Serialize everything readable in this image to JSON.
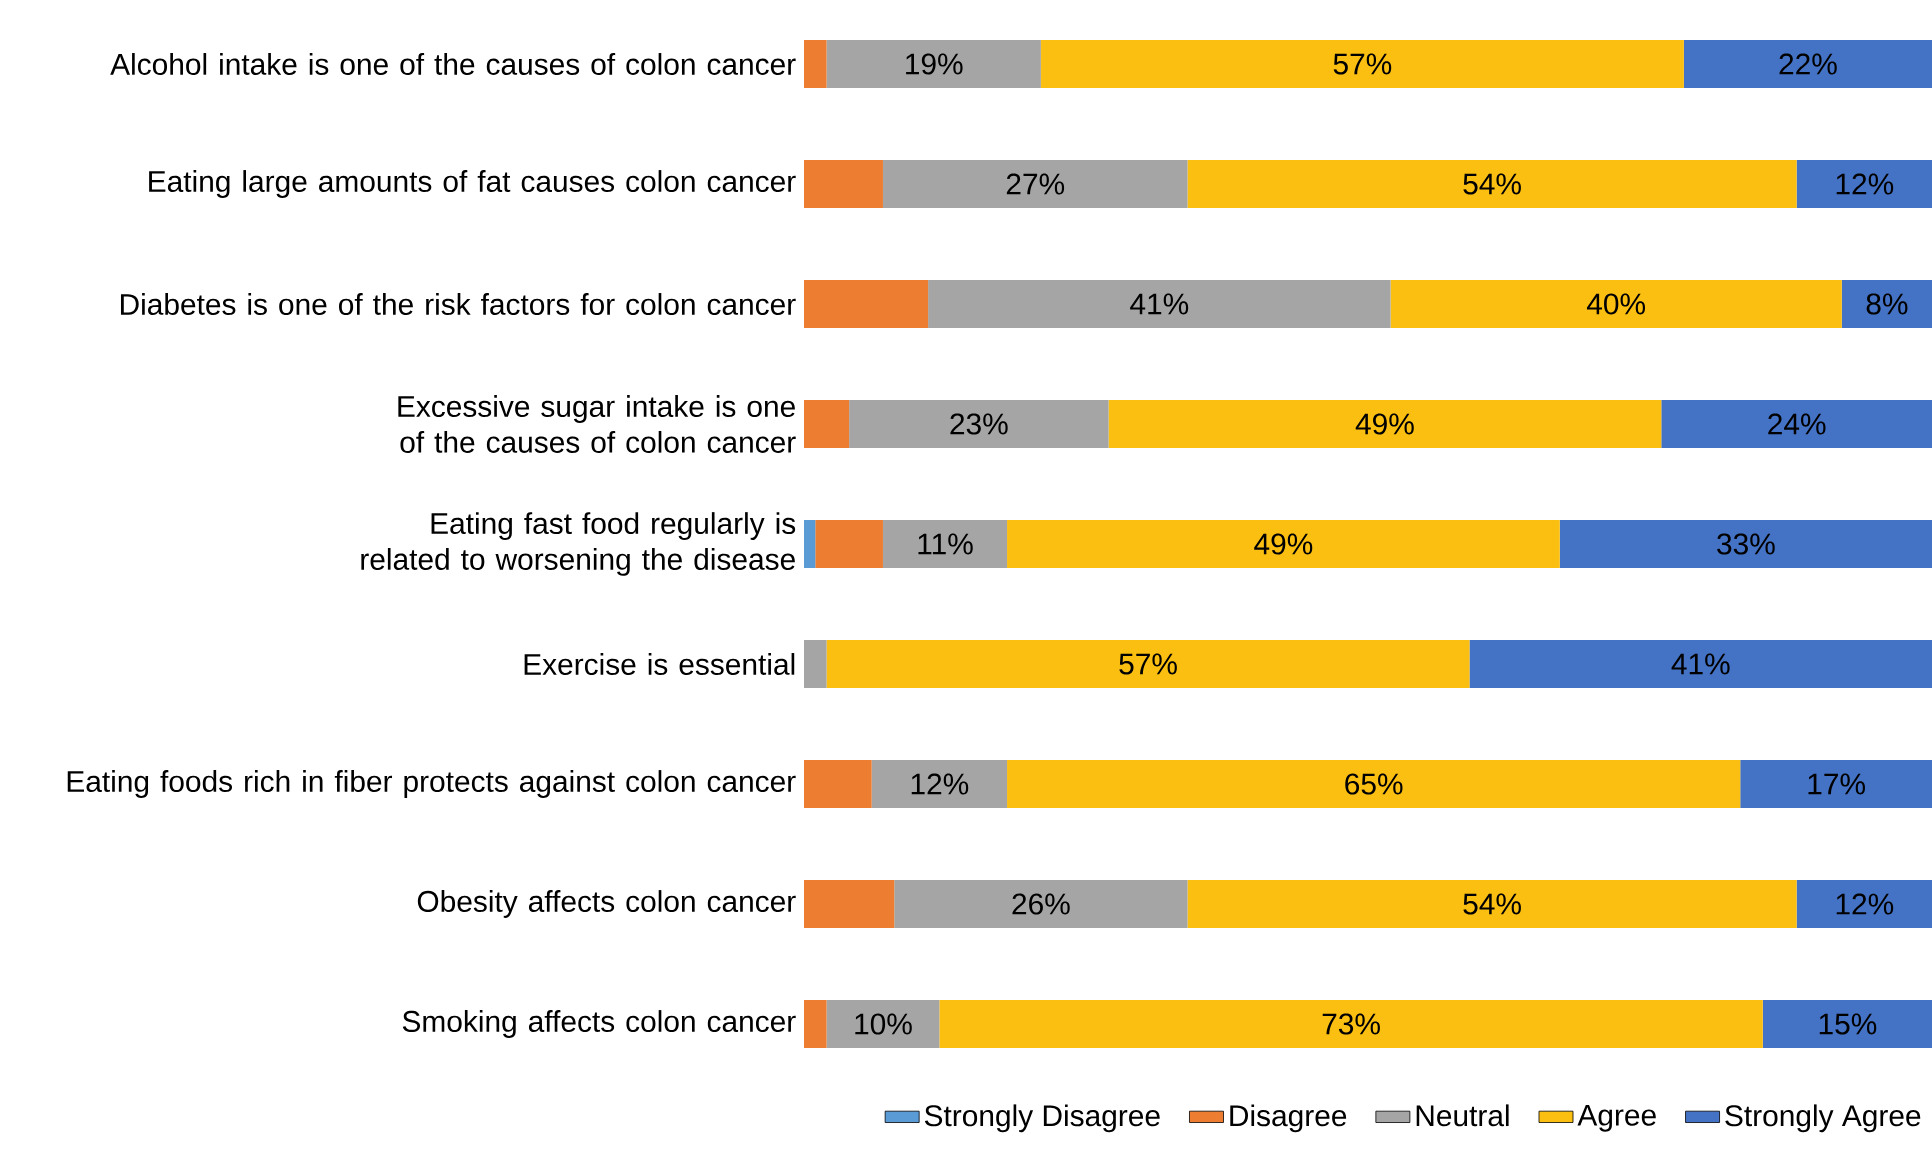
{
  "chart_data": {
    "type": "bar",
    "orientation": "horizontal",
    "stacked": true,
    "legend": "bottom",
    "categories": [
      "Alcohol intake is one of the causes of colon cancer",
      "Eating large amounts of fat causes colon cancer",
      "Diabetes is one of the risk factors for colon cancer",
      "Excessive sugar intake is one of the causes of colon cancer",
      "Eating fast food regularly is related to worsening the disease",
      "Exercise is essential",
      "Eating foods rich in fiber protects against colon cancer",
      "Obesity affects colon cancer",
      "Smoking affects colon cancer"
    ],
    "series": [
      {
        "name": "Strongly Disagree",
        "color": "#5b9bd5",
        "values": [
          0,
          0,
          0,
          0,
          1,
          0,
          0,
          0,
          0
        ],
        "value_labels": [
          null,
          null,
          null,
          null,
          null,
          null,
          null,
          null,
          null
        ]
      },
      {
        "name": "Disagree",
        "color": "#ed7d31",
        "values": [
          2,
          7,
          11,
          4,
          6,
          0,
          6,
          8,
          2
        ],
        "value_labels": [
          null,
          null,
          null,
          null,
          null,
          null,
          null,
          null,
          null
        ]
      },
      {
        "name": "Neutral",
        "color": "#a5a5a5",
        "values": [
          19,
          27,
          41,
          23,
          11,
          2,
          12,
          26,
          10
        ],
        "value_labels": [
          "19%",
          "27%",
          "41%",
          "23%",
          "11%",
          null,
          "12%",
          "26%",
          "10%"
        ]
      },
      {
        "name": "Agree",
        "color": "#fbbf12",
        "values": [
          57,
          54,
          40,
          49,
          49,
          57,
          65,
          54,
          73
        ],
        "value_labels": [
          "57%",
          "54%",
          "40%",
          "49%",
          "49%",
          "57%",
          "65%",
          "54%",
          "73%"
        ]
      },
      {
        "name": "Strongly Agree",
        "color": "#4472c4",
        "values": [
          22,
          12,
          8,
          24,
          33,
          41,
          17,
          12,
          15
        ],
        "value_labels": [
          "22%",
          "12%",
          "8%",
          "24%",
          "33%",
          "41%",
          "17%",
          "12%",
          "15%"
        ]
      }
    ]
  }
}
